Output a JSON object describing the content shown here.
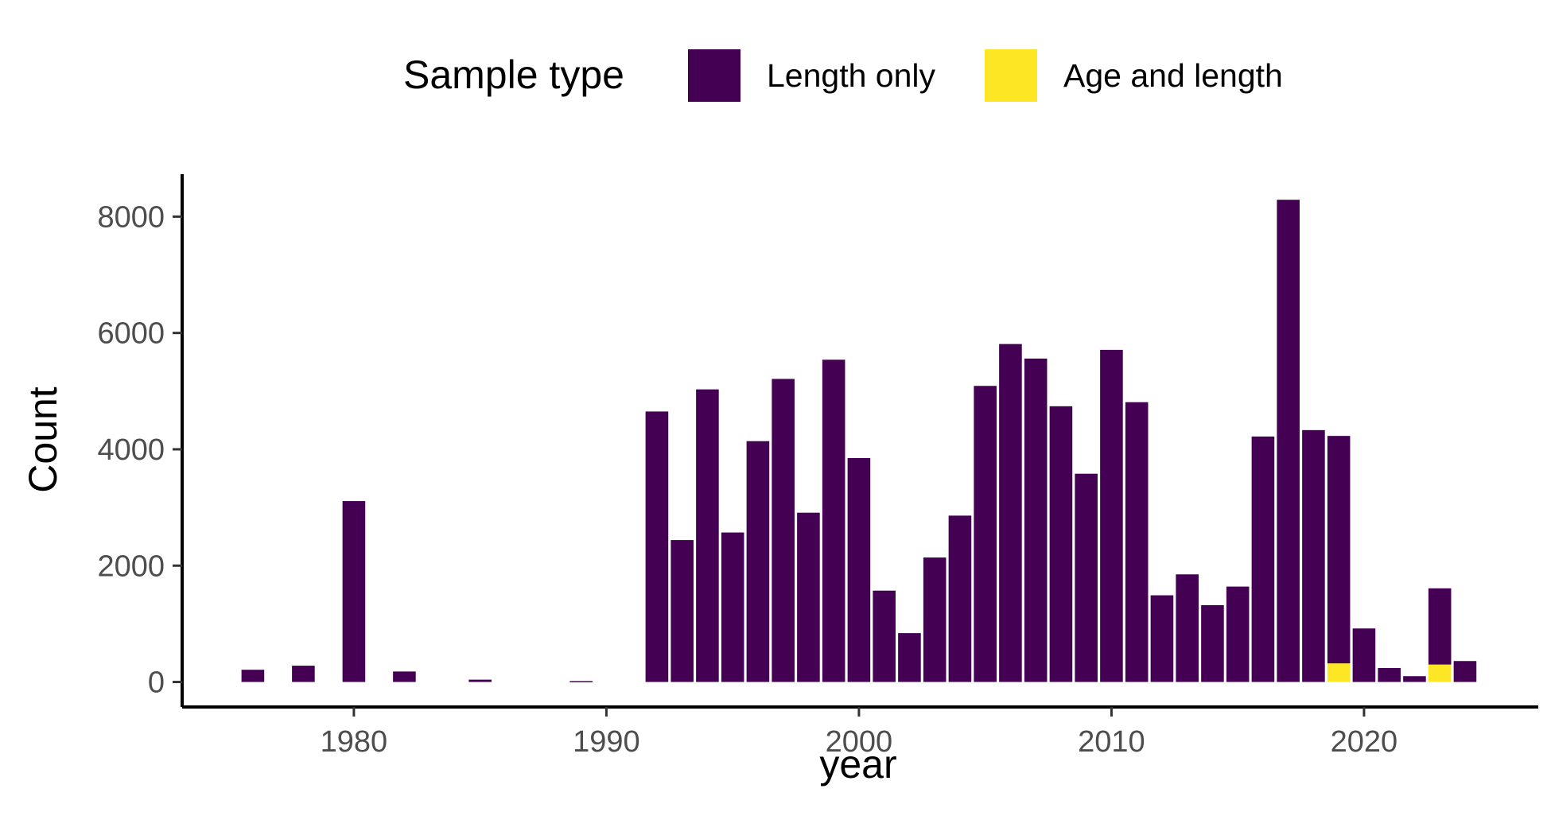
{
  "colors": {
    "length_only": "#440154",
    "age_and_length": "#fde725",
    "axis": "#000000",
    "tick_text": "#4d4d4d",
    "background": "#ffffff"
  },
  "chart_data": {
    "type": "bar",
    "stacked": true,
    "xlabel": "year",
    "ylabel": "Count",
    "xlim": [
      1973.2,
      2026.9
    ],
    "ylim": [
      -430,
      8730
    ],
    "x_ticks": [
      1980,
      1990,
      2000,
      2010,
      2020
    ],
    "y_ticks": [
      0,
      2000,
      4000,
      6000,
      8000
    ],
    "grid": false,
    "legend": {
      "title": "Sample type",
      "position": "top",
      "entries": [
        "Length only",
        "Age and length"
      ]
    },
    "years": [
      1976,
      1978,
      1980,
      1982,
      1985,
      1989,
      1992,
      1993,
      1994,
      1995,
      1996,
      1997,
      1998,
      1999,
      2000,
      2001,
      2002,
      2003,
      2004,
      2005,
      2006,
      2007,
      2008,
      2009,
      2010,
      2011,
      2012,
      2013,
      2014,
      2015,
      2016,
      2017,
      2018,
      2019,
      2020,
      2021,
      2022,
      2023,
      2024
    ],
    "series": [
      {
        "name": "Length only",
        "color": "#440154",
        "values": [
          210,
          280,
          3110,
          180,
          40,
          15,
          4650,
          2440,
          5030,
          2570,
          4140,
          5210,
          2910,
          5540,
          3850,
          1570,
          840,
          2140,
          2860,
          5090,
          5810,
          5560,
          4740,
          3580,
          5710,
          4810,
          1490,
          1850,
          1320,
          1640,
          4220,
          8290,
          4330,
          3910,
          920,
          240,
          100,
          1310,
          360
        ]
      },
      {
        "name": "Age and length",
        "color": "#fde725",
        "values": [
          0,
          0,
          0,
          0,
          0,
          0,
          0,
          0,
          0,
          0,
          0,
          0,
          0,
          0,
          0,
          0,
          0,
          0,
          0,
          0,
          0,
          0,
          0,
          0,
          0,
          0,
          0,
          0,
          0,
          0,
          0,
          0,
          0,
          320,
          0,
          0,
          0,
          300,
          0
        ]
      }
    ]
  }
}
